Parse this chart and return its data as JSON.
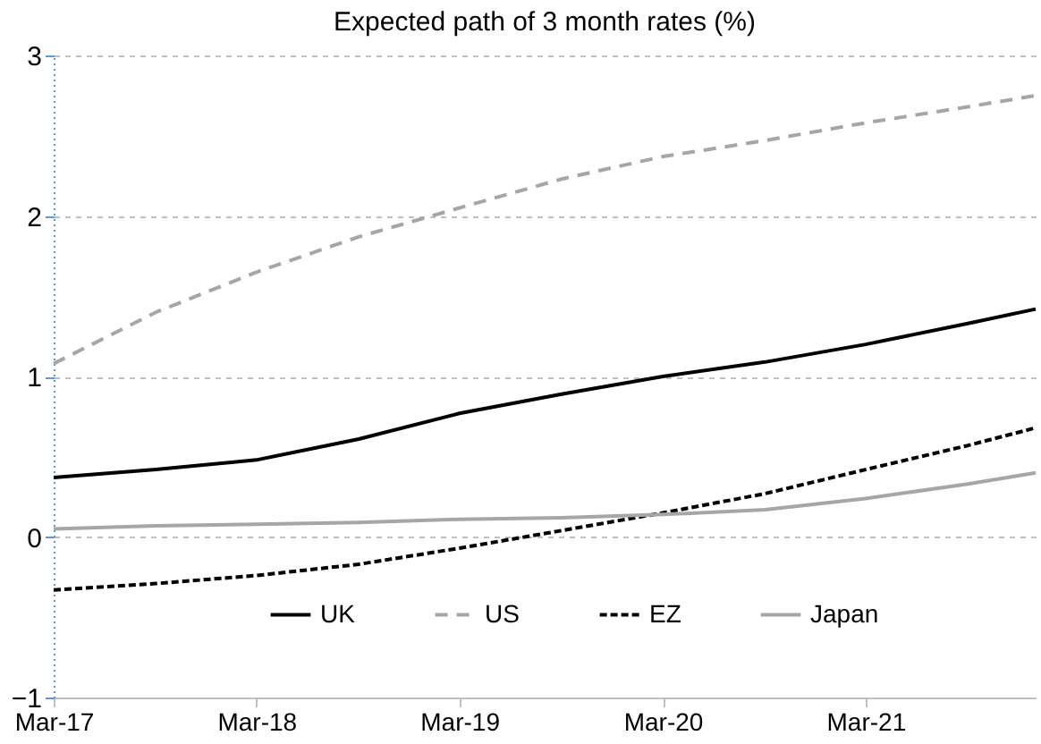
{
  "chart_data": {
    "type": "line",
    "title": "Expected path of 3 month rates (%)",
    "x": [
      "2017-03",
      "2017-09",
      "2018-03",
      "2018-09",
      "2019-03",
      "2019-09",
      "2020-03",
      "2020-09",
      "2021-03",
      "2021-09",
      "2022-01"
    ],
    "series": [
      {
        "name": "UK",
        "color": "#000000",
        "line_style": "solid",
        "values": [
          0.37,
          0.42,
          0.48,
          0.61,
          0.77,
          0.89,
          1.0,
          1.09,
          1.2,
          1.33,
          1.42
        ]
      },
      {
        "name": "US",
        "color": "#a6a6a6",
        "line_style": "dashed",
        "values": [
          1.08,
          1.4,
          1.65,
          1.87,
          2.05,
          2.23,
          2.37,
          2.47,
          2.58,
          2.68,
          2.75
        ]
      },
      {
        "name": "EZ",
        "color": "#000000",
        "line_style": "dotted",
        "values": [
          -0.33,
          -0.29,
          -0.24,
          -0.17,
          -0.07,
          0.04,
          0.15,
          0.27,
          0.42,
          0.57,
          0.68
        ]
      },
      {
        "name": "Japan",
        "color": "#a6a6a6",
        "line_style": "solid",
        "values": [
          0.05,
          0.07,
          0.08,
          0.09,
          0.11,
          0.12,
          0.14,
          0.17,
          0.24,
          0.33,
          0.4
        ]
      }
    ],
    "xlim": [
      "2017-03",
      "2022-01"
    ],
    "xticks": [
      {
        "value": "2017-03",
        "label": "Mar-17"
      },
      {
        "value": "2018-03",
        "label": "Mar-18"
      },
      {
        "value": "2019-03",
        "label": "Mar-19"
      },
      {
        "value": "2020-03",
        "label": "Mar-20"
      },
      {
        "value": "2021-03",
        "label": "Mar-21"
      }
    ],
    "ylim": [
      -1,
      3
    ],
    "yticks": [
      -1,
      0,
      1,
      2,
      3
    ],
    "grid": "y",
    "legend": "bottom",
    "marker": "none"
  }
}
